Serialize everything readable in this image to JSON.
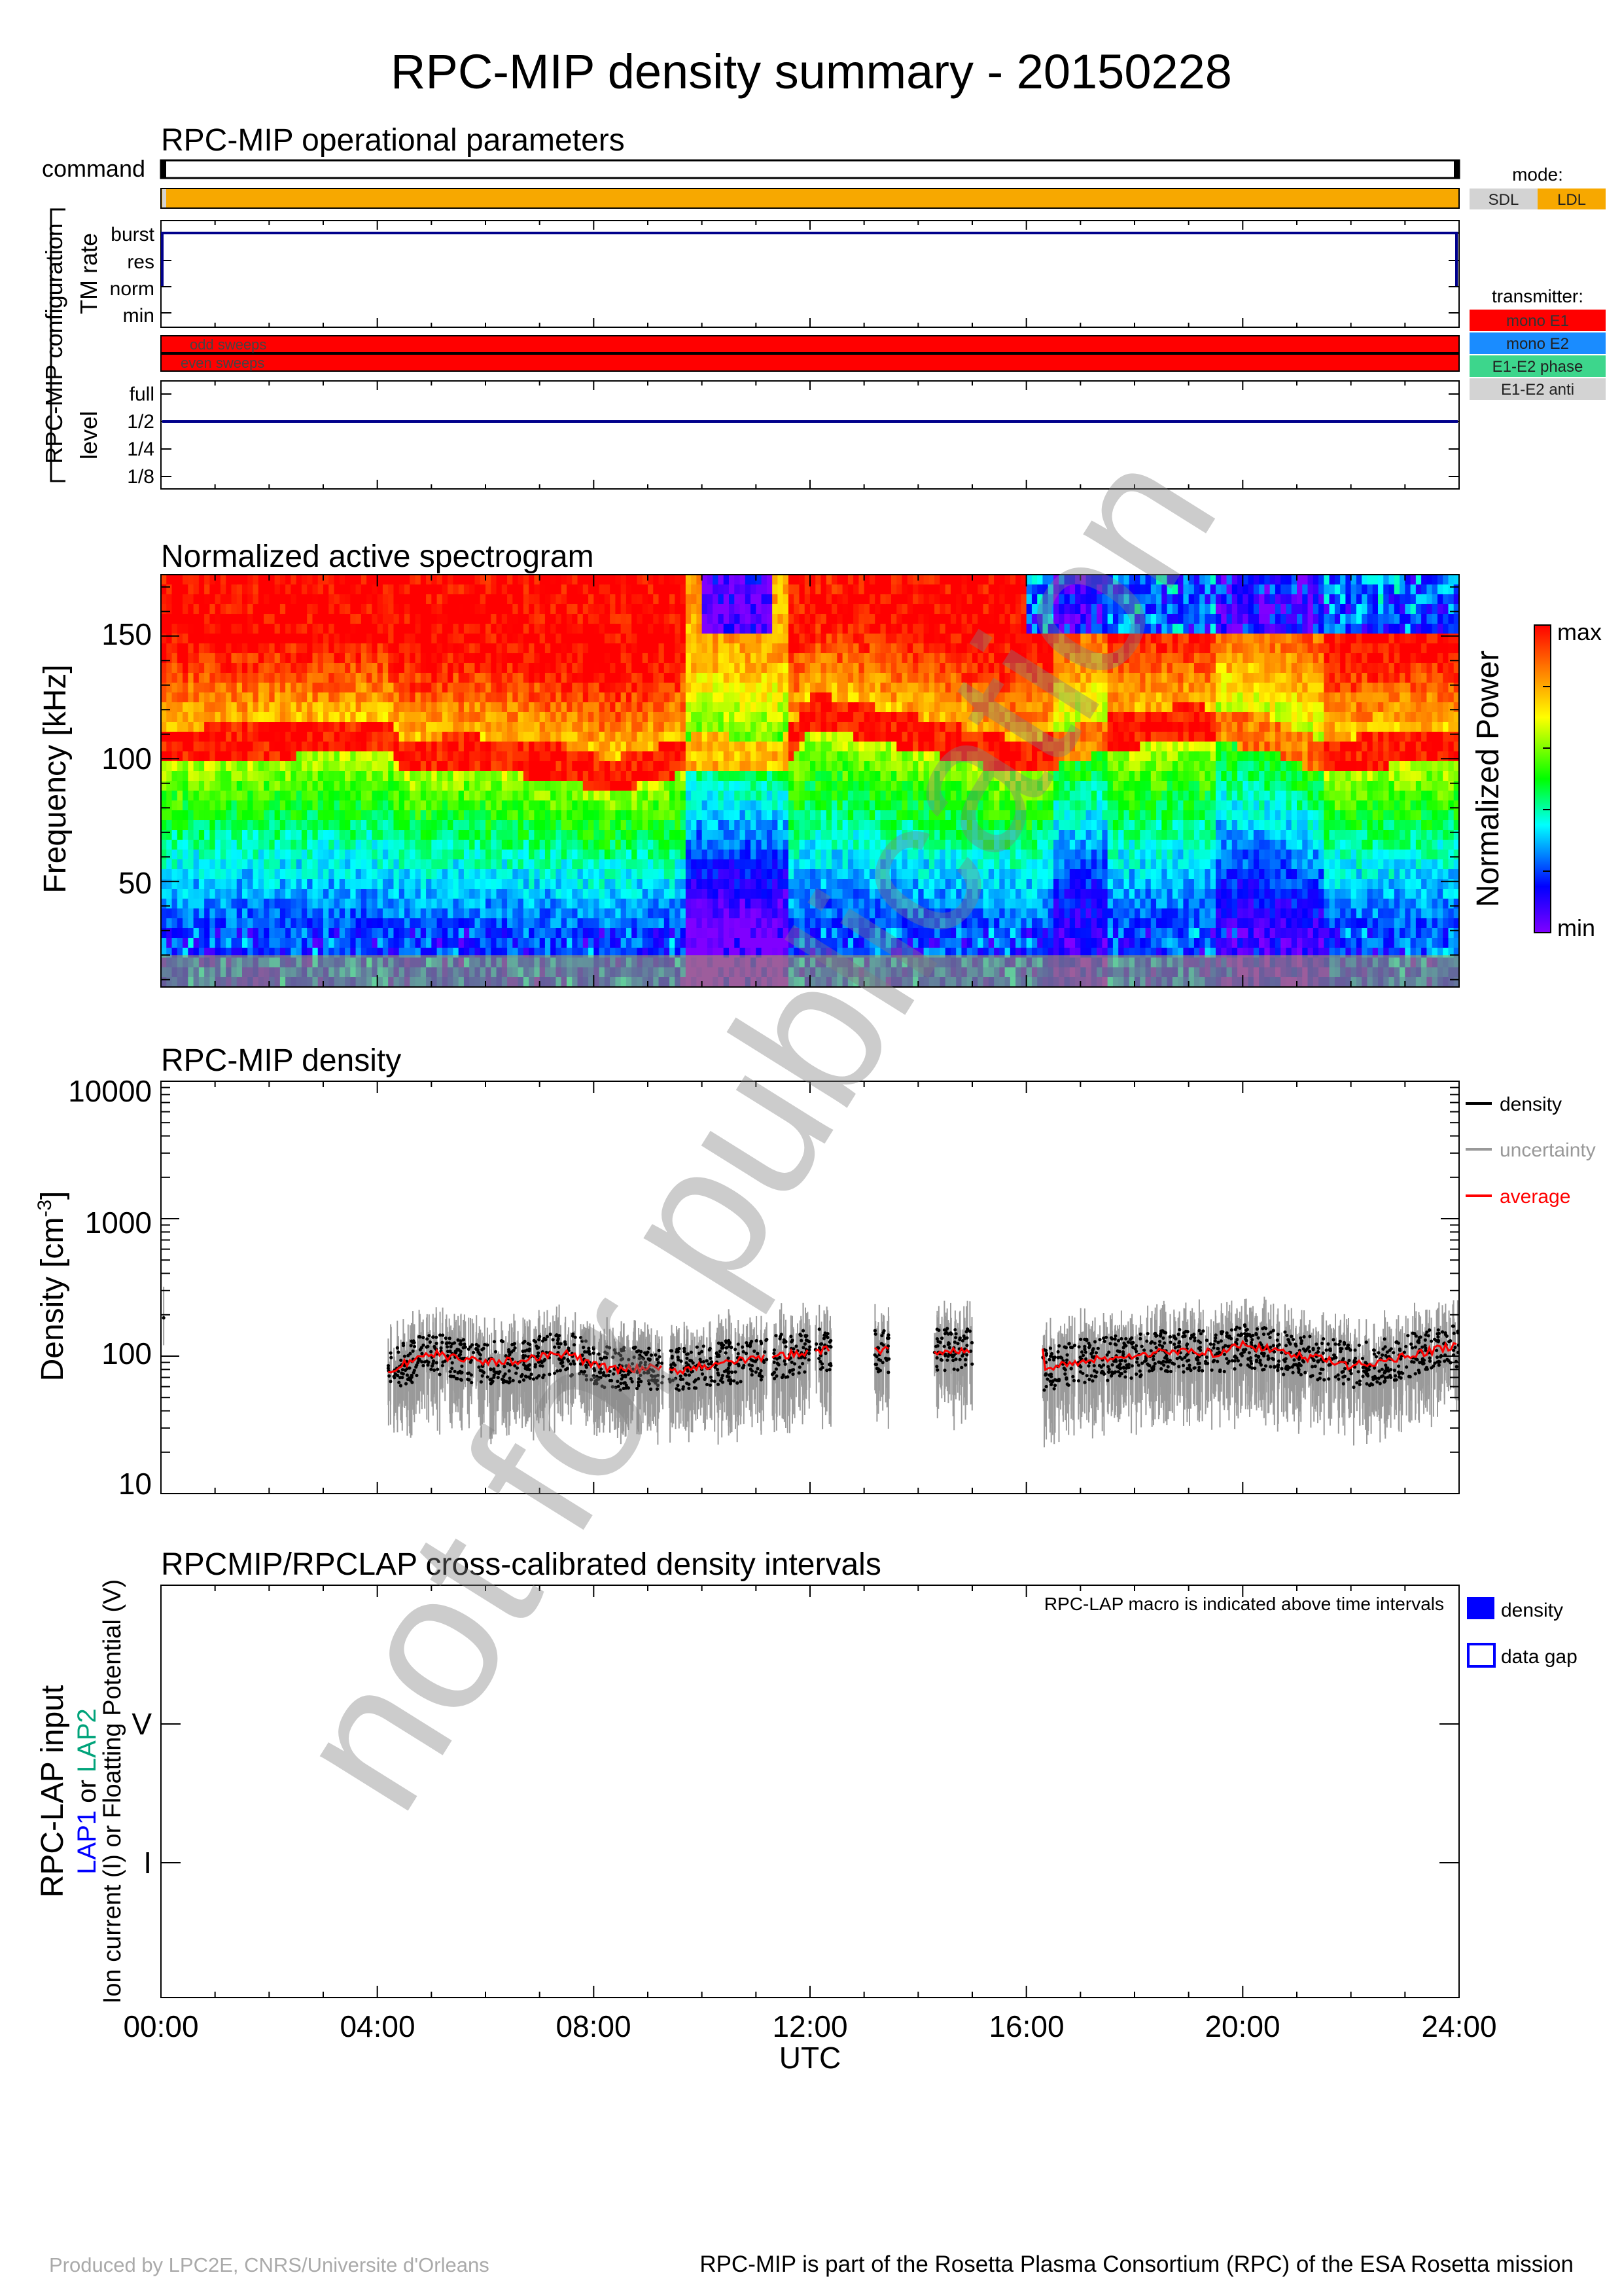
{
  "title": "RPC-MIP density summary - 20150228",
  "watermark": "not for publication",
  "panel1": {
    "title": "RPC-MIP operational parameters",
    "command_label": "command",
    "group_label": "RPC-MIP configuration",
    "tm_label": "TM rate",
    "tm_levels": [
      "burst",
      "res",
      "norm",
      "min"
    ],
    "sweep_labels": [
      "odd sweeps",
      "even sweeps"
    ],
    "level_label": "level",
    "level_ticks": [
      "full",
      "1/2",
      "1/4",
      "1/8"
    ],
    "mode_legend": {
      "title": "mode:",
      "items": [
        {
          "label": "SDL",
          "color": "#d3d3d3"
        },
        {
          "label": "LDL",
          "color": "#f7a800"
        }
      ]
    },
    "transmitter_legend": {
      "title": "transmitter:",
      "items": [
        {
          "label": "mono E1",
          "color": "#ff0000"
        },
        {
          "label": "mono E2",
          "color": "#1a8cff"
        },
        {
          "label": "E1-E2 phase",
          "color": "#3dd68c"
        },
        {
          "label": "E1-E2 anti",
          "color": "#d3d3d3"
        }
      ]
    }
  },
  "panel2": {
    "title": "Normalized active spectrogram",
    "ylabel": "Frequency [kHz]",
    "yticks": [
      "150",
      "100",
      "50"
    ],
    "colorbar_label": "Normalized Power",
    "colorbar_max": "max",
    "colorbar_min": "min"
  },
  "panel3": {
    "title": "RPC-MIP density",
    "ylabel_main": "Density [cm",
    "ylabel_sup": "-3",
    "ylabel_end": "]",
    "yticks": [
      "10000",
      "1000",
      "100",
      "10"
    ],
    "legend": [
      {
        "label": "density",
        "color": "#000000"
      },
      {
        "label": "uncertainty",
        "color": "#999999"
      },
      {
        "label": "average",
        "color": "#ff0000"
      }
    ]
  },
  "panel4": {
    "title": "RPCMIP/RPCLAP cross-calibrated density intervals",
    "note": "RPC-LAP macro is indicated above time intervals",
    "ylabel1": "RPC-LAP input",
    "ylabel2_a": "LAP1",
    "ylabel2_b": " or ",
    "ylabel2_c": "LAP2",
    "ylabel3": "Ion current (I) or Floatting Potential (V)",
    "yticks": [
      "V",
      "I"
    ],
    "legend": [
      {
        "label": "density"
      },
      {
        "label": "data gap"
      }
    ]
  },
  "xaxis": {
    "ticks": [
      "00:00",
      "04:00",
      "08:00",
      "12:00",
      "16:00",
      "20:00",
      "24:00"
    ],
    "label": "UTC"
  },
  "footer_left": "Produced by LPC2E, CNRS/Universite d'Orleans",
  "footer_right": "RPC-MIP is part of the Rosetta Plasma Consortium (RPC) of the ESA Rosetta mission",
  "chart_data": [
    {
      "type": "heatmap",
      "title": "Normalized active spectrogram",
      "xlabel": "UTC",
      "ylabel": "Frequency [kHz]",
      "x_range_hours": [
        0,
        24
      ],
      "ylim": [
        7,
        175
      ],
      "colorscale": "rainbow (min=purple, max=red)",
      "plasma_line_kHz": [
        [
          0,
          105
        ],
        [
          4.2,
          110
        ],
        [
          4.5,
          100
        ],
        [
          5.5,
          103
        ],
        [
          7.5,
          98
        ],
        [
          8.3,
          93
        ],
        [
          10,
          103
        ],
        [
          11.5,
          100
        ],
        [
          12,
          120
        ],
        [
          14,
          110
        ],
        [
          16,
          100
        ],
        [
          17.5,
          110
        ],
        [
          19,
          115
        ],
        [
          20.5,
          110
        ],
        [
          21.5,
          100
        ],
        [
          23,
          105
        ],
        [
          24,
          105
        ]
      ]
    },
    {
      "type": "scatter",
      "title": "RPC-MIP density",
      "xlabel": "UTC",
      "ylabel": "Density [cm-3]",
      "yscale": "log",
      "ylim": [
        10,
        10000
      ],
      "series": [
        {
          "name": "average",
          "x": [
            4.2,
            4.6,
            5.0,
            5.5,
            6.0,
            6.5,
            7.0,
            7.5,
            8.0,
            8.5,
            9.0,
            9.5,
            10.0,
            10.5,
            11.0,
            11.5,
            12.0,
            16.3,
            17.0,
            18.0,
            18.5,
            19.5,
            20.0,
            20.5,
            21.0,
            21.5,
            22.0,
            22.5,
            23.0,
            23.5,
            24.0
          ],
          "y": [
            80,
            90,
            105,
            95,
            90,
            92,
            100,
            105,
            85,
            80,
            82,
            78,
            85,
            90,
            95,
            100,
            110,
            78,
            92,
            100,
            110,
            105,
            120,
            112,
            100,
            95,
            85,
            90,
            100,
            110,
            120
          ]
        }
      ]
    }
  ]
}
